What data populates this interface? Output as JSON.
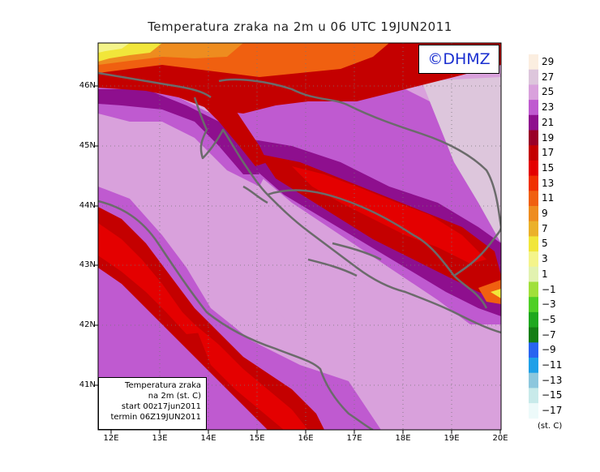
{
  "title": "Temperatura zraka na 2m u 06 UTC 19JUN2011",
  "copyright": "©DHMZ",
  "infobox": {
    "line1": "Temperatura zraka",
    "line2": "na 2m (st. C)",
    "line3": "start 00z17jun2011",
    "line4": "termin 06Z19JUN2011"
  },
  "lat_labels": [
    "46N",
    "45N",
    "44N",
    "43N",
    "42N",
    "41N"
  ],
  "lon_labels": [
    "12E",
    "13E",
    "14E",
    "15E",
    "16E",
    "17E",
    "18E",
    "19E",
    "20E"
  ],
  "legend": {
    "unit": "(st. C)",
    "labels": [
      "29",
      "27",
      "25",
      "23",
      "21",
      "19",
      "17",
      "15",
      "13",
      "11",
      "9",
      "7",
      "5",
      "3",
      "1",
      "−1",
      "−3",
      "−5",
      "−7",
      "−9",
      "−11",
      "−13",
      "−15",
      "−17"
    ],
    "colors": [
      "#fbeee0",
      "#ddc6dc",
      "#d9a1dc",
      "#bf5ad0",
      "#8e0f8e",
      "#9a0028",
      "#c40000",
      "#e40000",
      "#f03000",
      "#f06010",
      "#ee8c1f",
      "#ebb12a",
      "#f1e63a",
      "#f4f48a",
      "#e2f2b0",
      "#a0e03a",
      "#4fcf26",
      "#1ea81e",
      "#137e13",
      "#2864f0",
      "#1ea0e8",
      "#8cc7dd",
      "#c8eaea",
      "#edfafa"
    ]
  },
  "colors": {
    "coast": "#6b6b6b",
    "copyright_text": "#1a2fd0"
  }
}
